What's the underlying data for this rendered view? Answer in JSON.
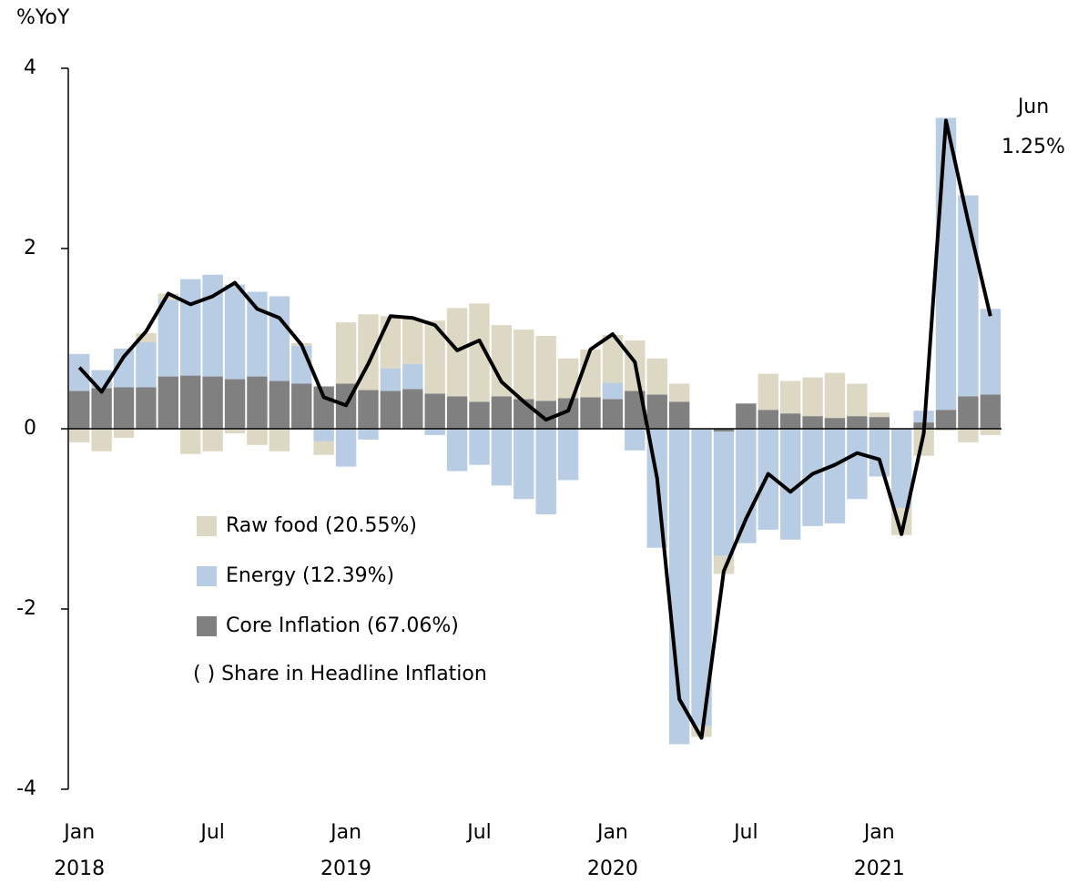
{
  "chart_data": {
    "type": "bar",
    "y_label": "%YoY",
    "categories": [
      "Jan",
      null,
      null,
      null,
      null,
      null,
      "Jul",
      null,
      null,
      null,
      null,
      null,
      "Jan",
      null,
      null,
      null,
      null,
      null,
      "Jul",
      null,
      null,
      null,
      null,
      null,
      "Jan",
      null,
      null,
      null,
      null,
      null,
      "Jul",
      null,
      null,
      null,
      null,
      null,
      "Jan",
      null,
      null,
      null,
      null,
      null
    ],
    "years": [
      "2018",
      null,
      null,
      null,
      null,
      null,
      null,
      null,
      null,
      null,
      null,
      null,
      "2019",
      null,
      null,
      null,
      null,
      null,
      null,
      null,
      null,
      null,
      null,
      null,
      "2020",
      null,
      null,
      null,
      null,
      null,
      null,
      null,
      null,
      null,
      null,
      null,
      "2021",
      null,
      null,
      null,
      null,
      null
    ],
    "ylim": [
      -4,
      4
    ],
    "yticks": [
      -4,
      -2,
      0,
      2,
      4
    ],
    "stacked": true,
    "series": [
      {
        "name": "Core Inflation (67.06%)",
        "color": "#808080",
        "values": [
          0.42,
          0.45,
          0.46,
          0.46,
          0.58,
          0.59,
          0.58,
          0.55,
          0.58,
          0.53,
          0.5,
          0.47,
          0.5,
          0.43,
          0.42,
          0.44,
          0.39,
          0.36,
          0.3,
          0.36,
          0.33,
          0.31,
          0.34,
          0.35,
          0.33,
          0.42,
          0.38,
          0.3,
          0,
          -0.03,
          0.28,
          0.21,
          0.17,
          0.14,
          0.12,
          0.14,
          0.13,
          0,
          0.07,
          0.21,
          0.36,
          0.38
        ]
      },
      {
        "name": "Energy (12.39%)",
        "color": "#b8cce4",
        "values": [
          0.41,
          0.2,
          0.43,
          0.5,
          0.85,
          1.07,
          1.13,
          1.05,
          0.94,
          0.94,
          0.42,
          -0.14,
          -0.42,
          -0.12,
          0.25,
          0.28,
          -0.07,
          -0.47,
          -0.4,
          -0.63,
          -0.78,
          -0.95,
          -0.57,
          0,
          0.18,
          -0.24,
          -1.32,
          -3.5,
          -3.3,
          -1.38,
          -1.27,
          -1.12,
          -1.23,
          -1.08,
          -1.05,
          -0.78,
          -0.53,
          -0.88,
          0.13,
          3.24,
          2.23,
          0.95
        ]
      },
      {
        "name": "Raw food (20.55%)",
        "color": "#ddd8c4",
        "values": [
          -0.15,
          -0.25,
          -0.1,
          0.1,
          0.07,
          -0.28,
          -0.25,
          -0.05,
          -0.18,
          -0.25,
          0.03,
          -0.15,
          0.68,
          0.84,
          0.58,
          0.5,
          0.81,
          0.98,
          1.09,
          0.79,
          0.77,
          0.72,
          0.44,
          0.53,
          0.53,
          0.56,
          0.4,
          0.2,
          -0.12,
          -0.2,
          0,
          0.4,
          0.36,
          0.43,
          0.5,
          0.36,
          0.05,
          -0.3,
          -0.3,
          -0.02,
          -0.15,
          -0.07
        ]
      },
      {
        "type": "line",
        "color": "#000000",
        "values": [
          0.68,
          0.41,
          0.8,
          1.08,
          1.5,
          1.38,
          1.47,
          1.62,
          1.33,
          1.23,
          0.93,
          0.35,
          0.26,
          0.72,
          1.25,
          1.23,
          1.15,
          0.87,
          0.98,
          0.52,
          0.3,
          0.1,
          0.2,
          0.88,
          1.05,
          0.74,
          -0.55,
          -3.0,
          -3.43,
          -1.58,
          -1.0,
          -0.5,
          -0.7,
          -0.5,
          -0.4,
          -0.27,
          -0.34,
          -1.17,
          -0.05,
          3.42,
          2.3,
          1.25
        ]
      }
    ],
    "legend_order": [
      2,
      1,
      0
    ],
    "note": "( ) Share in Headline Inflation",
    "annotations": [
      "Jun",
      "1.25%"
    ]
  }
}
